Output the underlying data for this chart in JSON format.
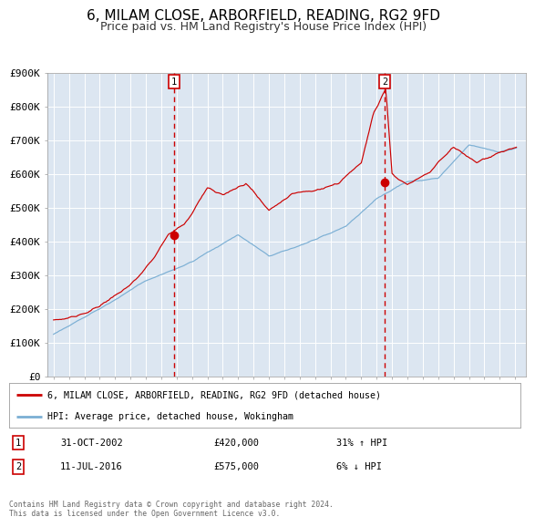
{
  "title": "6, MILAM CLOSE, ARBORFIELD, READING, RG2 9FD",
  "subtitle": "Price paid vs. HM Land Registry's House Price Index (HPI)",
  "ylim": [
    0,
    900000
  ],
  "yticks": [
    0,
    100000,
    200000,
    300000,
    400000,
    500000,
    600000,
    700000,
    800000,
    900000
  ],
  "ytick_labels": [
    "£0",
    "£100K",
    "£200K",
    "£300K",
    "£400K",
    "£500K",
    "£600K",
    "£700K",
    "£800K",
    "£900K"
  ],
  "background_color": "#ffffff",
  "plot_bg_color": "#dce6f1",
  "grid_color": "#ffffff",
  "red_line_color": "#cc0000",
  "blue_line_color": "#7bafd4",
  "vline_color": "#cc0000",
  "dot_color": "#cc0000",
  "sale1_date_num": 2002.833,
  "sale1_price": 420000,
  "sale2_date_num": 2016.528,
  "sale2_price": 575000,
  "legend_label_red": "6, MILAM CLOSE, ARBORFIELD, READING, RG2 9FD (detached house)",
  "legend_label_blue": "HPI: Average price, detached house, Wokingham",
  "footnote": "Contains HM Land Registry data © Crown copyright and database right 2024.\nThis data is licensed under the Open Government Licence v3.0.",
  "table": [
    {
      "num": "1",
      "date": "31-OCT-2002",
      "price": "£420,000",
      "hpi": "31% ↑ HPI"
    },
    {
      "num": "2",
      "date": "11-JUL-2016",
      "price": "£575,000",
      "hpi": "6% ↓ HPI"
    }
  ],
  "title_fontsize": 11,
  "subtitle_fontsize": 9,
  "xlim_left": 1994.6,
  "xlim_right": 2025.7
}
